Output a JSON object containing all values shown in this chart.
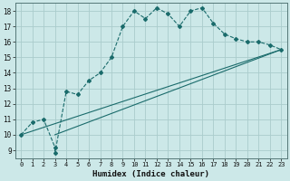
{
  "xlabel": "Humidex (Indice chaleur)",
  "bg_color": "#cce8e8",
  "grid_color": "#aacccc",
  "line_color": "#1a6b6b",
  "xlim": [
    -0.5,
    23.5
  ],
  "ylim": [
    8.5,
    18.5
  ],
  "xticks": [
    0,
    1,
    2,
    3,
    4,
    5,
    6,
    7,
    8,
    9,
    10,
    11,
    12,
    13,
    14,
    15,
    16,
    17,
    18,
    19,
    20,
    21,
    22,
    23
  ],
  "yticks": [
    9,
    10,
    11,
    12,
    13,
    14,
    15,
    16,
    17,
    18
  ],
  "curve1_x": [
    0,
    1,
    2,
    3,
    3,
    4,
    5,
    6,
    7,
    8,
    9,
    10,
    11,
    12,
    13,
    14,
    15,
    16,
    17,
    18,
    19,
    20,
    21,
    22,
    23
  ],
  "curve1_y": [
    10.0,
    10.8,
    11.0,
    9.2,
    8.8,
    12.8,
    12.6,
    13.5,
    14.0,
    15.0,
    17.0,
    18.0,
    17.5,
    18.2,
    17.8,
    17.0,
    18.0,
    18.2,
    17.2,
    16.5,
    16.2,
    16.0,
    16.0,
    15.8,
    15.5
  ],
  "curve2_x": [
    0,
    23
  ],
  "curve2_y": [
    10.0,
    15.5
  ],
  "curve3_x": [
    3,
    23
  ],
  "curve3_y": [
    10.0,
    15.5
  ]
}
